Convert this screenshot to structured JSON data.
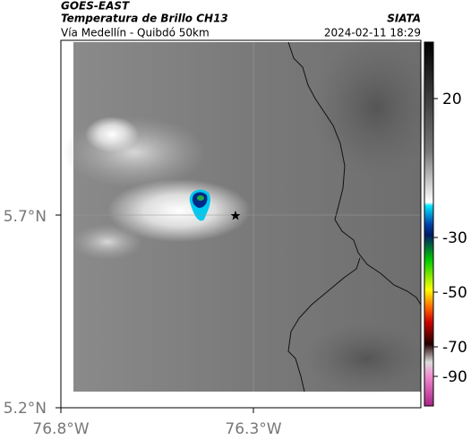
{
  "header": {
    "satellite": "GOES-EAST",
    "product": "Temperatura de Brillo CH13",
    "region": "Vía Medellín - Quibdó 50km",
    "source": "SIATA",
    "datetime": "2024-02-11 18:29"
  },
  "axes": {
    "lat_ticks": [
      "5.7°N",
      "5.2°N"
    ],
    "lon_ticks": [
      "76.8°W",
      "76.3°W"
    ]
  },
  "colorbar": {
    "ticks": [
      20,
      -30,
      -50,
      -70,
      -90
    ]
  }
}
